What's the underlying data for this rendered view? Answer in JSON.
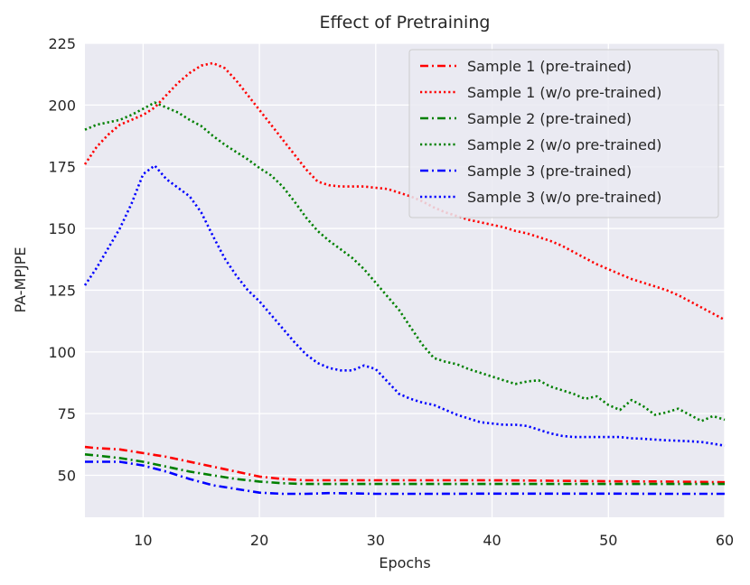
{
  "chart_data": {
    "type": "line",
    "title": "Effect of Pretraining",
    "xlabel": "Epochs",
    "ylabel": "PA-MPJPE",
    "xlim": [
      5,
      60
    ],
    "ylim": [
      33,
      225
    ],
    "xticks": [
      10,
      20,
      30,
      40,
      50,
      60
    ],
    "yticks": [
      50,
      75,
      100,
      125,
      150,
      175,
      200,
      225
    ],
    "grid": true,
    "legend_position": "top-right",
    "series": [
      {
        "name": "Sample 1 (pre-trained)",
        "color": "#ff0000",
        "style": "dashdot",
        "x": [
          5,
          6,
          8,
          10,
          12,
          14,
          16,
          18,
          20,
          22,
          24,
          26,
          28,
          30,
          35,
          40,
          45,
          50,
          55,
          60
        ],
        "y": [
          61.5,
          61,
          60.5,
          59,
          57.5,
          55.5,
          53.5,
          51.5,
          49.5,
          48.5,
          48,
          48,
          48,
          48,
          48,
          48,
          47.8,
          47.6,
          47.5,
          47.2
        ]
      },
      {
        "name": "Sample 1 (w/o pre-trained)",
        "color": "#ff0000",
        "style": "dotted",
        "x": [
          5,
          6,
          7,
          8,
          9,
          10,
          11,
          12,
          13,
          14,
          15,
          16,
          17,
          18,
          19,
          20,
          21,
          22,
          23,
          24,
          25,
          26,
          27,
          28,
          29,
          30,
          31,
          32,
          33,
          34,
          35,
          36,
          37,
          38,
          39,
          40,
          41,
          42,
          43,
          44,
          45,
          46,
          47,
          48,
          49,
          50,
          51,
          52,
          53,
          54,
          55,
          56,
          57,
          58,
          59,
          60
        ],
        "y": [
          176,
          183,
          188,
          192,
          194,
          196,
          199,
          204,
          209,
          213,
          216,
          217,
          215,
          210,
          204,
          198,
          192,
          186,
          180,
          174,
          169,
          167.5,
          167,
          167,
          167,
          166.5,
          166,
          164.5,
          163,
          161,
          158.5,
          156.5,
          155,
          153.5,
          152.5,
          151.5,
          150.5,
          149,
          148,
          146.5,
          145,
          143,
          140.5,
          138,
          135.5,
          133.5,
          131.5,
          129.5,
          128,
          126.5,
          125,
          123,
          120.5,
          118,
          115.5,
          113
        ]
      },
      {
        "name": "Sample 2 (pre-trained)",
        "color": "#008000",
        "style": "dashdot",
        "x": [
          5,
          6,
          8,
          10,
          12,
          14,
          16,
          18,
          20,
          22,
          24,
          26,
          28,
          30,
          35,
          40,
          45,
          50,
          55,
          60
        ],
        "y": [
          58.5,
          58,
          57,
          55.5,
          53.5,
          51.5,
          50,
          48.5,
          47.5,
          46.8,
          46.5,
          46.5,
          46.5,
          46.5,
          46.5,
          46.5,
          46.5,
          46.5,
          46.5,
          46.5
        ]
      },
      {
        "name": "Sample 2 (w/o pre-trained)",
        "color": "#008000",
        "style": "dotted",
        "x": [
          5,
          6,
          7,
          8,
          9,
          10,
          11,
          12,
          13,
          14,
          15,
          16,
          17,
          18,
          19,
          20,
          21,
          22,
          23,
          24,
          25,
          26,
          27,
          28,
          29,
          30,
          31,
          32,
          33,
          34,
          35,
          36,
          37,
          38,
          39,
          40,
          41,
          42,
          43,
          44,
          45,
          46,
          47,
          48,
          49,
          50,
          51,
          52,
          53,
          54,
          55,
          56,
          57,
          58,
          59,
          60
        ],
        "y": [
          190,
          192,
          193,
          194,
          196,
          198.5,
          201,
          199,
          197,
          194,
          191.5,
          187.5,
          184,
          181,
          178,
          174.5,
          171.5,
          167,
          161,
          154.5,
          149,
          145,
          141.5,
          138,
          133.5,
          128,
          122.5,
          117,
          110,
          103,
          97.5,
          96,
          95,
          93,
          91.5,
          90,
          88.5,
          87,
          88,
          88.5,
          86,
          84.5,
          83,
          81,
          82,
          78.5,
          76.5,
          80.5,
          78,
          74.5,
          75.5,
          77,
          74.5,
          72,
          74,
          72.5
        ]
      },
      {
        "name": "Sample 3 (pre-trained)",
        "color": "#0000ff",
        "style": "dashdot",
        "x": [
          5,
          6,
          8,
          10,
          12,
          14,
          16,
          18,
          20,
          22,
          24,
          26,
          28,
          30,
          35,
          40,
          45,
          50,
          55,
          60
        ],
        "y": [
          55.5,
          55.5,
          55.5,
          54,
          51.5,
          48.5,
          46,
          44.5,
          43,
          42.5,
          42.5,
          42.8,
          42.7,
          42.5,
          42.5,
          42.6,
          42.6,
          42.6,
          42.5,
          42.5
        ]
      },
      {
        "name": "Sample 3 (w/o pre-trained)",
        "color": "#0000ff",
        "style": "dotted",
        "x": [
          5,
          6,
          7,
          8,
          9,
          10,
          11,
          12,
          13,
          14,
          15,
          16,
          17,
          18,
          19,
          20,
          21,
          22,
          23,
          24,
          25,
          26,
          27,
          28,
          29,
          30,
          31,
          32,
          33,
          34,
          35,
          36,
          37,
          38,
          39,
          40,
          41,
          42,
          43,
          44,
          45,
          46,
          47,
          48,
          49,
          50,
          51,
          52,
          53,
          54,
          55,
          56,
          57,
          58,
          59,
          60
        ],
        "y": [
          127,
          134,
          142,
          150,
          160,
          172,
          175.5,
          170,
          166.5,
          163,
          156.5,
          147,
          138,
          131,
          125,
          120.5,
          115,
          109.5,
          104,
          99,
          95.5,
          93.5,
          92.5,
          92.5,
          94.5,
          93,
          88,
          83,
          81,
          79.5,
          78.5,
          76.5,
          74.5,
          73,
          71.5,
          71,
          70.5,
          70.5,
          70,
          68.5,
          67,
          66,
          65.5,
          65.5,
          65.5,
          65.5,
          65.5,
          65,
          64.8,
          64.5,
          64.2,
          64,
          63.8,
          63.5,
          62.8,
          62
        ]
      }
    ]
  }
}
